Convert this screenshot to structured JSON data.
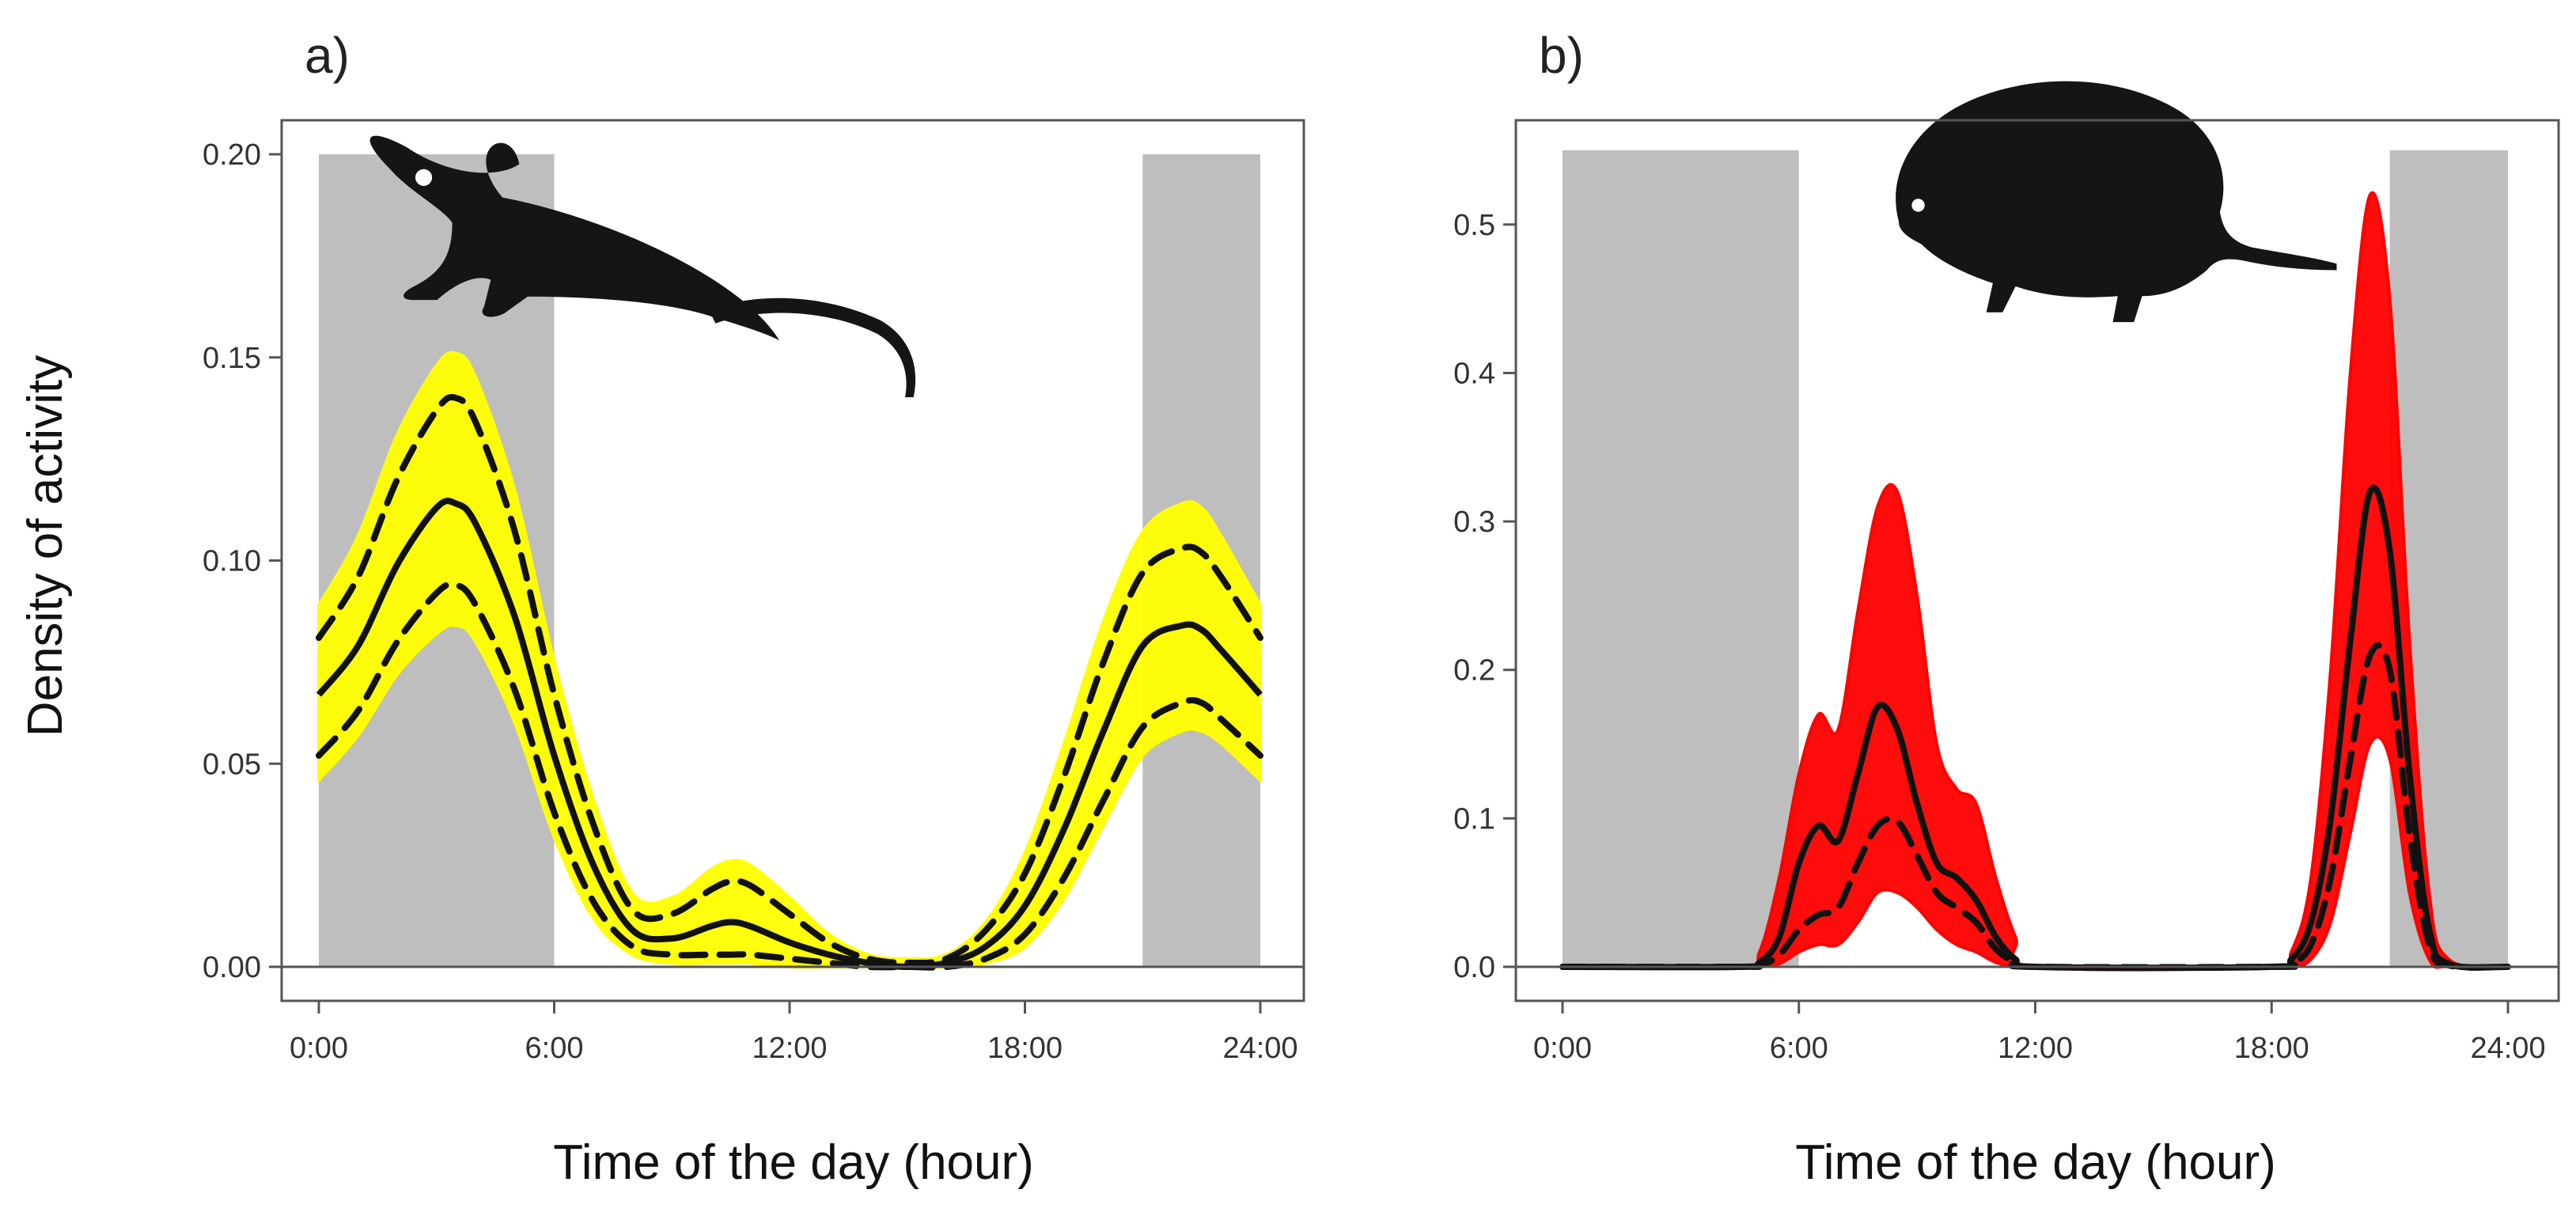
{
  "figure": {
    "y_axis_title": "Density of activity",
    "x_axis_title": "Time of the day (hour)"
  },
  "chart_data": [
    {
      "type": "line",
      "panel_label": "a)",
      "animal_icon": "mouse-silhouette-icon",
      "band_color": "#ffff00",
      "xlabel": "Time of the day (hour)",
      "ylabel": "Density of activity",
      "xlim": [
        0,
        24
      ],
      "ylim": [
        0,
        0.2
      ],
      "x_ticks": [
        0,
        6,
        12,
        18,
        24
      ],
      "x_tick_labels": [
        "0:00",
        "6:00",
        "12:00",
        "18:00",
        "24:00"
      ],
      "y_ticks": [
        0,
        0.05,
        0.1,
        0.15,
        0.2
      ],
      "y_tick_labels": [
        "0.00",
        "0.05",
        "0.10",
        "0.15",
        "0.20"
      ],
      "night_periods": [
        [
          0,
          6
        ],
        [
          21,
          24
        ]
      ],
      "series": [
        {
          "name": "mean",
          "x": [
            0,
            1,
            2,
            3,
            3.5,
            4,
            5,
            6,
            7,
            8,
            9,
            10,
            10.5,
            11,
            12,
            13,
            14,
            15,
            16,
            17,
            18,
            19,
            20,
            21,
            22,
            22.5,
            23,
            24
          ],
          "y": [
            0.067,
            0.079,
            0.099,
            0.113,
            0.114,
            0.109,
            0.086,
            0.052,
            0.025,
            0.009,
            0.007,
            0.01,
            0.011,
            0.01,
            0.006,
            0.003,
            0.001,
            0.0,
            0.001,
            0.005,
            0.015,
            0.034,
            0.058,
            0.079,
            0.084,
            0.083,
            0.078,
            0.067
          ]
        },
        {
          "name": "upper 95% CI",
          "x": [
            0,
            1,
            2,
            3,
            3.5,
            4,
            5,
            6,
            7,
            8,
            9,
            10,
            10.5,
            11,
            12,
            13,
            14,
            15,
            16,
            17,
            18,
            19,
            20,
            21,
            22,
            22.5,
            23,
            24
          ],
          "y": [
            0.081,
            0.096,
            0.12,
            0.137,
            0.14,
            0.134,
            0.107,
            0.067,
            0.035,
            0.014,
            0.013,
            0.019,
            0.021,
            0.02,
            0.013,
            0.006,
            0.002,
            0.001,
            0.002,
            0.009,
            0.023,
            0.047,
            0.075,
            0.097,
            0.103,
            0.102,
            0.096,
            0.081
          ]
        },
        {
          "name": "lower 95% CI",
          "x": [
            0,
            1,
            2,
            3,
            3.5,
            4,
            5,
            6,
            7,
            8,
            9,
            10,
            10.5,
            11,
            12,
            13,
            14,
            15,
            16,
            17,
            18,
            19,
            20,
            21,
            22,
            22.5,
            23,
            24
          ],
          "y": [
            0.052,
            0.063,
            0.08,
            0.092,
            0.094,
            0.089,
            0.068,
            0.038,
            0.016,
            0.005,
            0.003,
            0.003,
            0.003,
            0.003,
            0.002,
            0.001,
            0.0,
            0.0,
            0.0,
            0.002,
            0.008,
            0.022,
            0.041,
            0.059,
            0.065,
            0.065,
            0.061,
            0.052
          ]
        },
        {
          "name": "bootstrap envelope upper",
          "x": [
            0,
            1,
            2,
            3,
            3.5,
            4,
            5,
            6,
            7,
            8,
            9,
            10,
            10.5,
            11,
            12,
            13,
            14,
            15,
            16,
            17,
            18,
            19,
            20,
            21,
            22,
            22.5,
            23,
            24
          ],
          "y": [
            0.089,
            0.106,
            0.131,
            0.148,
            0.151,
            0.145,
            0.117,
            0.075,
            0.041,
            0.018,
            0.017,
            0.024,
            0.026,
            0.025,
            0.017,
            0.008,
            0.003,
            0.002,
            0.003,
            0.011,
            0.028,
            0.055,
            0.085,
            0.107,
            0.114,
            0.113,
            0.106,
            0.089
          ]
        },
        {
          "name": "bootstrap envelope lower",
          "x": [
            0,
            1,
            2,
            3,
            3.5,
            4,
            5,
            6,
            7,
            8,
            9,
            10,
            10.5,
            11,
            12,
            13,
            14,
            15,
            16,
            17,
            18,
            19,
            20,
            21,
            22,
            22.5,
            23,
            24
          ],
          "y": [
            0.046,
            0.057,
            0.072,
            0.082,
            0.084,
            0.08,
            0.06,
            0.032,
            0.012,
            0.003,
            0.001,
            0.001,
            0.001,
            0.001,
            0.0,
            0.0,
            0.0,
            0.0,
            0.0,
            0.001,
            0.005,
            0.017,
            0.035,
            0.052,
            0.058,
            0.058,
            0.055,
            0.046
          ]
        }
      ]
    },
    {
      "type": "line",
      "panel_label": "b)",
      "animal_icon": "rodent-silhouette-icon",
      "band_color": "#ff0000",
      "xlabel": "Time of the day (hour)",
      "ylabel": "Density of activity",
      "xlim": [
        0,
        24
      ],
      "ylim": [
        0,
        0.55
      ],
      "x_ticks": [
        0,
        6,
        12,
        18,
        24
      ],
      "x_tick_labels": [
        "0:00",
        "6:00",
        "12:00",
        "18:00",
        "24:00"
      ],
      "y_ticks": [
        0,
        0.1,
        0.2,
        0.3,
        0.4,
        0.5
      ],
      "y_tick_labels": [
        "0.0",
        "0.1",
        "0.2",
        "0.3",
        "0.4",
        "0.5"
      ],
      "night_periods": [
        [
          0,
          6
        ],
        [
          21,
          24
        ]
      ],
      "series": [
        {
          "name": "mean",
          "x": [
            0,
            4.5,
            5,
            5.5,
            6,
            6.5,
            7,
            7.5,
            8,
            8.5,
            9,
            9.5,
            10,
            10.5,
            11,
            11.5,
            12,
            18,
            18.5,
            19,
            19.5,
            20,
            20.5,
            21,
            21.5,
            22,
            22.5,
            24
          ],
          "y": [
            0,
            0,
            0.003,
            0.02,
            0.07,
            0.095,
            0.085,
            0.13,
            0.175,
            0.16,
            0.11,
            0.07,
            0.06,
            0.045,
            0.02,
            0.005,
            0,
            0,
            0.005,
            0.03,
            0.1,
            0.22,
            0.32,
            0.28,
            0.13,
            0.025,
            0.002,
            0
          ]
        },
        {
          "name": "lower 95% CI",
          "x": [
            0,
            4.5,
            5,
            5.5,
            6,
            6.5,
            7,
            7.5,
            8,
            8.5,
            9,
            9.5,
            10,
            10.5,
            11,
            11.5,
            12,
            18,
            18.5,
            19,
            19.5,
            20,
            20.5,
            21,
            21.5,
            22,
            22.5,
            24
          ],
          "y": [
            0,
            0,
            0.001,
            0.008,
            0.025,
            0.035,
            0.04,
            0.07,
            0.095,
            0.098,
            0.075,
            0.05,
            0.04,
            0.03,
            0.012,
            0.003,
            0,
            0,
            0.002,
            0.015,
            0.06,
            0.14,
            0.21,
            0.2,
            0.09,
            0.015,
            0.001,
            0
          ]
        },
        {
          "name": "bootstrap envelope upper",
          "x": [
            0,
            4.5,
            5,
            5.5,
            6,
            6.5,
            7,
            7.5,
            8,
            8.5,
            9,
            9.5,
            10,
            10.5,
            11,
            11.5,
            12,
            18,
            18.5,
            19,
            19.5,
            20,
            20.5,
            21,
            21.5,
            22,
            22.5,
            24
          ],
          "y": [
            0,
            0,
            0.01,
            0.06,
            0.13,
            0.17,
            0.16,
            0.24,
            0.31,
            0.32,
            0.25,
            0.15,
            0.12,
            0.11,
            0.06,
            0.02,
            0,
            0,
            0.01,
            0.06,
            0.2,
            0.4,
            0.52,
            0.45,
            0.22,
            0.05,
            0.005,
            0
          ]
        },
        {
          "name": "bootstrap envelope lower",
          "x": [
            0,
            4.5,
            5,
            5.5,
            6,
            6.5,
            7,
            7.5,
            8,
            8.5,
            9,
            9.5,
            10,
            10.5,
            11,
            11.5,
            12,
            18,
            18.5,
            19,
            19.5,
            20,
            20.5,
            21,
            21.5,
            22,
            22.5,
            24
          ],
          "y": [
            0,
            0,
            0,
            0.002,
            0.01,
            0.015,
            0.015,
            0.03,
            0.05,
            0.05,
            0.04,
            0.025,
            0.015,
            0.01,
            0.003,
            0,
            0,
            0,
            0,
            0.005,
            0.03,
            0.09,
            0.15,
            0.14,
            0.05,
            0.005,
            0,
            0
          ]
        }
      ]
    }
  ]
}
